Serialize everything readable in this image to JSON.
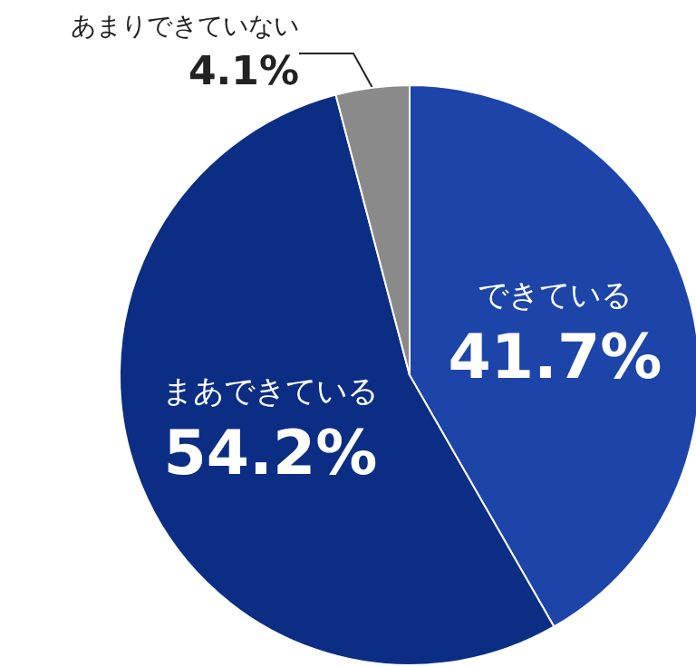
{
  "chart_data": {
    "type": "pie",
    "categories": [
      "できている",
      "まあできている",
      "あまりできていない"
    ],
    "values": [
      41.7,
      54.2,
      4.1
    ],
    "value_labels": [
      "41.7%",
      "54.2%",
      "4.1%"
    ],
    "colors": [
      "#1d44a8",
      "#0b2e84",
      "#8a8a8a"
    ]
  }
}
